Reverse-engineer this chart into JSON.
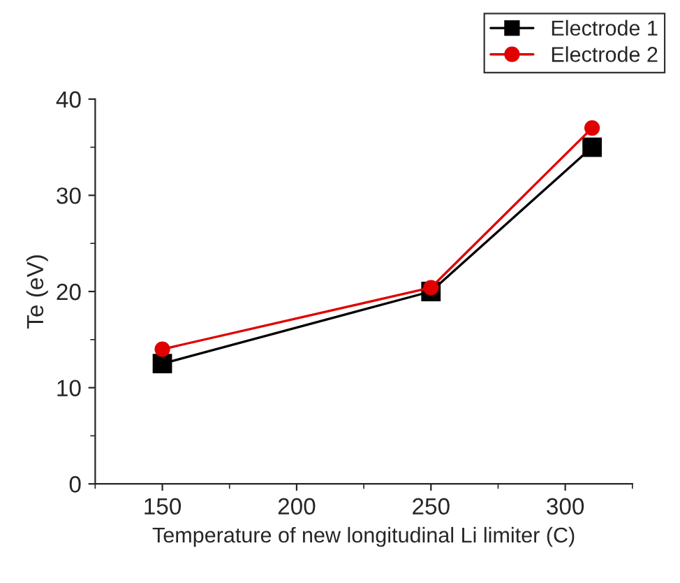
{
  "chart_data": {
    "type": "line",
    "xlabel": "Temperature of new longitudinal Li limiter (C)",
    "ylabel": "Te (eV)",
    "x": [
      150,
      250,
      310
    ],
    "series": [
      {
        "name": "Electrode 1",
        "color": "#000000",
        "values": [
          12.5,
          20,
          35
        ],
        "marker": "square"
      },
      {
        "name": "Electrode 2",
        "color": "#e00000",
        "values": [
          14,
          20.4,
          37
        ],
        "marker": "circle"
      }
    ],
    "xlim": [
      125,
      325
    ],
    "xticks": [
      150,
      200,
      250,
      300
    ],
    "ylim": [
      0,
      40
    ],
    "yticks": [
      0,
      10,
      20,
      30,
      40
    ],
    "grid": false,
    "legend": "top right",
    "line_style": "solid"
  }
}
